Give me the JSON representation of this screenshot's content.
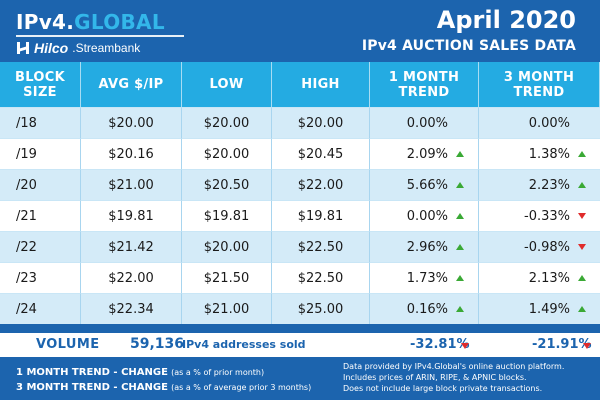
{
  "brand": {
    "logo_prefix": "IPv4.",
    "logo_accent": "GLOBAL",
    "partner_name": "Hilco",
    "partner_suffix": ".Streambank"
  },
  "title": {
    "main": "April 2020",
    "sub": "IPv4 AUCTION SALES DATA"
  },
  "table": {
    "headers": [
      "BLOCK SIZE",
      "AVG $/IP",
      "LOW",
      "HIGH",
      "1 MONTH TREND",
      "3 MONTH TREND"
    ],
    "rows": [
      {
        "block": "/18",
        "avg": "$20.00",
        "low": "$20.00",
        "high": "$20.00",
        "trend1": "0.00%",
        "trend1_dir": "none",
        "trend3": "0.00%",
        "trend3_dir": "none"
      },
      {
        "block": "/19",
        "avg": "$20.16",
        "low": "$20.00",
        "high": "$20.45",
        "trend1": "2.09%",
        "trend1_dir": "up",
        "trend3": "1.38%",
        "trend3_dir": "up"
      },
      {
        "block": "/20",
        "avg": "$21.00",
        "low": "$20.50",
        "high": "$22.00",
        "trend1": "5.66%",
        "trend1_dir": "up",
        "trend3": "2.23%",
        "trend3_dir": "up"
      },
      {
        "block": "/21",
        "avg": "$19.81",
        "low": "$19.81",
        "high": "$19.81",
        "trend1": "0.00%",
        "trend1_dir": "up",
        "trend3": "-0.33%",
        "trend3_dir": "down"
      },
      {
        "block": "/22",
        "avg": "$21.42",
        "low": "$20.00",
        "high": "$22.50",
        "trend1": "2.96%",
        "trend1_dir": "up",
        "trend3": "-0.98%",
        "trend3_dir": "down"
      },
      {
        "block": "/23",
        "avg": "$22.00",
        "low": "$21.50",
        "high": "$22.50",
        "trend1": "1.73%",
        "trend1_dir": "up",
        "trend3": "2.13%",
        "trend3_dir": "up"
      },
      {
        "block": "/24",
        "avg": "$22.34",
        "low": "$21.00",
        "high": "$25.00",
        "trend1": "0.16%",
        "trend1_dir": "up",
        "trend3": "1.49%",
        "trend3_dir": "up"
      }
    ]
  },
  "volume": {
    "label": "VOLUME",
    "count": "59,136",
    "text": "IPv4 addresses sold",
    "trend1": "-32.81%",
    "trend1_dir": "down",
    "trend3": "-21.91%",
    "trend3_dir": "down"
  },
  "footer": {
    "legend1_label": "1 MONTH TREND - CHANGE",
    "legend1_note": "(as a % of prior month)",
    "legend2_label": "3 MONTH TREND - CHANGE",
    "legend2_note": "(as a % of average prior 3 months)",
    "note_line1": "Data provided by IPv4.Global's online auction platform.",
    "note_line2": "Includes prices of ARIN, RIPE, & APNIC blocks.",
    "note_line3": "Does not include large block private transactions."
  },
  "colors": {
    "background": "#1c64ae",
    "header_cell": "#24abe2",
    "row_alt": "#d4ebf8",
    "up": "#3aa935",
    "down": "#e02b2b",
    "accent": "#33b7ea"
  }
}
